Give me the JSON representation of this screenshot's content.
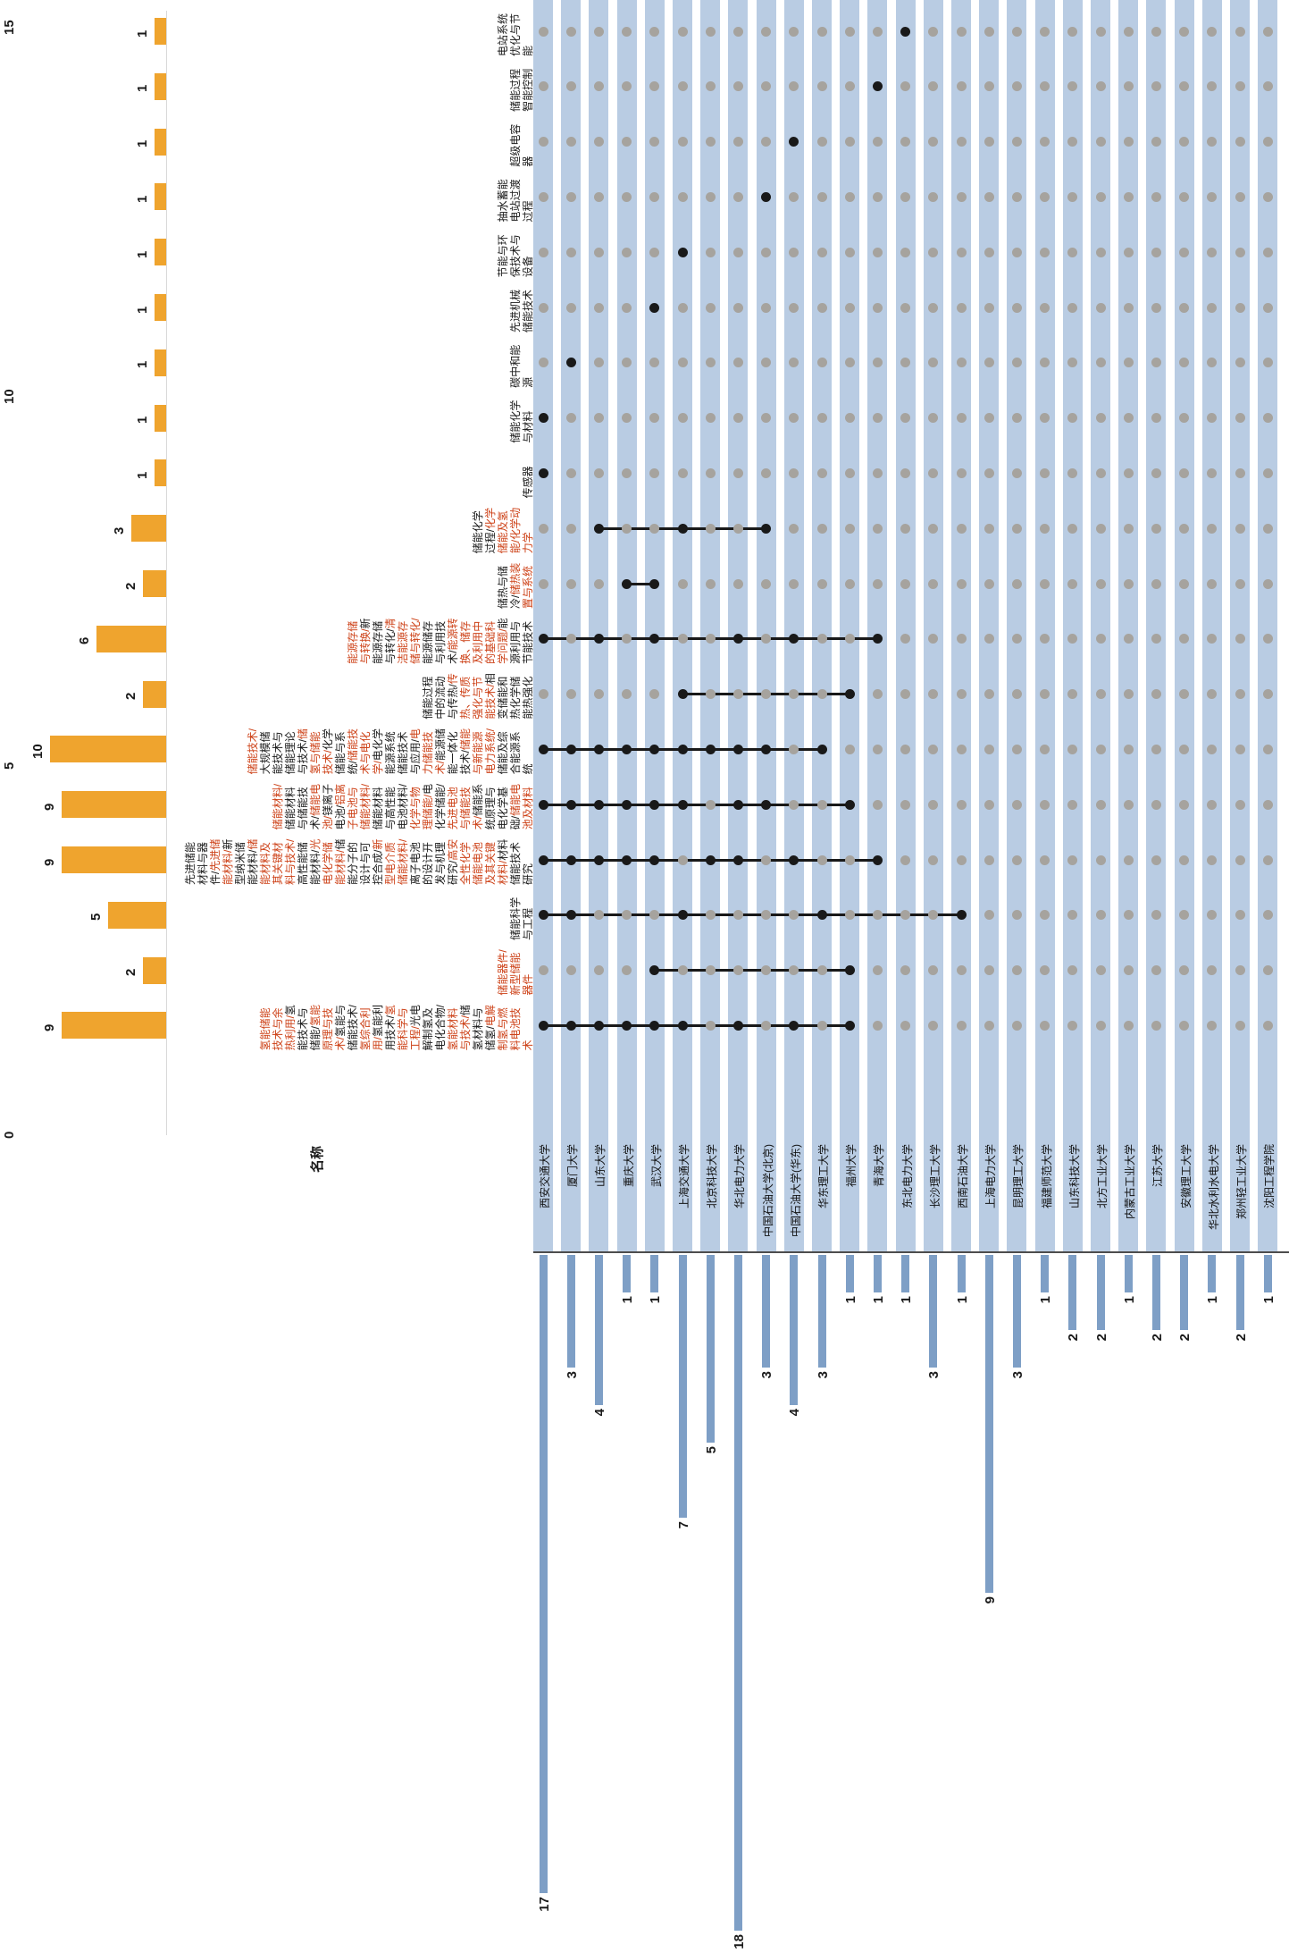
{
  "figure": {
    "label_column_header": "名称",
    "value_axis_ticks": [
      "15",
      "10",
      "5",
      "0"
    ]
  },
  "colors": {
    "bar_orange": "#EFA42E",
    "stripe_blue": "#B9CCE3",
    "set_bar_blue": "#7E9FC6",
    "dot_gray": "#A6A39E",
    "dot_dark": "#191919",
    "connector_dark": "#191919",
    "label_black": "#1A1A1A",
    "label_red": "#CD4117",
    "axis_line": "#4D4D4D"
  },
  "chart_data": {
    "type": "upset",
    "orientation": "figure rotated 90deg CCW (sideways text)",
    "value_axis_ticks": [
      15,
      10,
      5,
      0
    ],
    "intersections": [
      {
        "value": 1,
        "members": [
          14
        ],
        "label_segments": [
          {
            "t": "电站系统优化与节能",
            "c": "k"
          }
        ]
      },
      {
        "value": 1,
        "members": [
          13
        ],
        "label_segments": [
          {
            "t": "储能过程智能控制",
            "c": "k"
          }
        ]
      },
      {
        "value": 1,
        "members": [
          10
        ],
        "label_segments": [
          {
            "t": "超级电容器",
            "c": "k"
          }
        ]
      },
      {
        "value": 1,
        "members": [
          9
        ],
        "label_segments": [
          {
            "t": "抽水蓄能电站过渡过程",
            "c": "k"
          }
        ]
      },
      {
        "value": 1,
        "members": [
          6
        ],
        "label_segments": [
          {
            "t": "节能与环保技术与设备",
            "c": "k"
          }
        ]
      },
      {
        "value": 1,
        "members": [
          5
        ],
        "label_segments": [
          {
            "t": "先进机械储能技术",
            "c": "k"
          }
        ]
      },
      {
        "value": 1,
        "members": [
          2
        ],
        "label_segments": [
          {
            "t": "碳中和能源",
            "c": "k"
          }
        ]
      },
      {
        "value": 1,
        "members": [
          1
        ],
        "label_segments": [
          {
            "t": "储能化学与材料",
            "c": "k"
          }
        ]
      },
      {
        "value": 1,
        "members": [
          1
        ],
        "label_segments": [
          {
            "t": "传感器",
            "c": "k"
          }
        ]
      },
      {
        "value": 3,
        "members": [
          3,
          6,
          9
        ],
        "label_segments": [
          {
            "t": "储能化学过程/",
            "c": "k"
          },
          {
            "t": "化学储能及氢能/",
            "c": "r"
          },
          {
            "t": "化学动力学",
            "c": "r"
          }
        ]
      },
      {
        "value": 2,
        "members": [
          4,
          5
        ],
        "label_segments": [
          {
            "t": "储热与储冷/",
            "c": "k"
          },
          {
            "t": "储热装置与系统",
            "c": "r"
          }
        ]
      },
      {
        "value": 6,
        "members": [
          1,
          3,
          5,
          8,
          10,
          13
        ],
        "label_segments": [
          {
            "t": "能源存储与转换/",
            "c": "r"
          },
          {
            "t": "新能源存储与转化/",
            "c": "k"
          },
          {
            "t": "清洁能源存储与转化/",
            "c": "r"
          },
          {
            "t": "能源储存与利用技术/",
            "c": "k"
          },
          {
            "t": "能源转换、储存及利用中的基础科学问题/",
            "c": "r"
          },
          {
            "t": "能源利用与节能技术",
            "c": "k"
          }
        ]
      },
      {
        "value": 2,
        "members": [
          6,
          12
        ],
        "label_segments": [
          {
            "t": "储能过程中的流动与传热/",
            "c": "k"
          },
          {
            "t": "传热、传质强化与节能技术/",
            "c": "r"
          },
          {
            "t": "相变储能和热化学储能热强化",
            "c": "k"
          }
        ]
      },
      {
        "value": 10,
        "members": [
          1,
          2,
          3,
          4,
          5,
          6,
          7,
          8,
          9,
          11
        ],
        "label_segments": [
          {
            "t": "储能技术/",
            "c": "r"
          },
          {
            "t": "大规模储能技术与储能理论与技术/",
            "c": "k"
          },
          {
            "t": "储氢与储能技术/",
            "c": "r"
          },
          {
            "t": "化学储能与系统/",
            "c": "k"
          },
          {
            "t": "储能技术与电化学/",
            "c": "r"
          },
          {
            "t": "电化学能源系统储能技术与应用/",
            "c": "k"
          },
          {
            "t": "电力储能技术/",
            "c": "r"
          },
          {
            "t": "能源储能一体化技术/",
            "c": "k"
          },
          {
            "t": "储能与新能源电力系统/",
            "c": "r"
          },
          {
            "t": "储能及综合能源系统",
            "c": "k"
          }
        ]
      },
      {
        "value": 9,
        "members": [
          1,
          2,
          3,
          4,
          5,
          6,
          8,
          9,
          12
        ],
        "label_segments": [
          {
            "t": "储能材料/",
            "c": "r"
          },
          {
            "t": "储能材料与储能技术/",
            "c": "k"
          },
          {
            "t": "储能电池/",
            "c": "r"
          },
          {
            "t": "镁离子电池/",
            "c": "k"
          },
          {
            "t": "铝离子电池与储能材料/",
            "c": "r"
          },
          {
            "t": "储能材料与高性能电池材料/",
            "c": "k"
          },
          {
            "t": "化学与物理储能/",
            "c": "r"
          },
          {
            "t": "电化学储能/",
            "c": "k"
          },
          {
            "t": "先进电池与储能技术/",
            "c": "r"
          },
          {
            "t": "储能系统原理与电化学基础/",
            "c": "k"
          },
          {
            "t": "储能电池及材料",
            "c": "r"
          }
        ]
      },
      {
        "value": 9,
        "members": [
          1,
          2,
          3,
          4,
          5,
          7,
          8,
          10,
          13
        ],
        "label_segments": [
          {
            "t": "先进储能材料与器件/",
            "c": "k"
          },
          {
            "t": "先进储能材料/",
            "c": "r"
          },
          {
            "t": "新型纳米储能材料/",
            "c": "k"
          },
          {
            "t": "储能材料及其关键材料与技术/",
            "c": "r"
          },
          {
            "t": "高性能储能材料/",
            "c": "k"
          },
          {
            "t": "光电化学储能材料/",
            "c": "r"
          },
          {
            "t": "储能分子的设计与可控合成/",
            "c": "k"
          },
          {
            "t": "新型电介质储能材料/",
            "c": "r"
          },
          {
            "t": "离子电池的设计开发与机理研究/",
            "c": "k"
          },
          {
            "t": "高安全性化学储能电池及其关键材料/",
            "c": "r"
          },
          {
            "t": "材料储能技术研究",
            "c": "k"
          }
        ]
      },
      {
        "value": 5,
        "members": [
          1,
          2,
          6,
          11,
          16
        ],
        "label_segments": [
          {
            "t": "储能科学与工程",
            "c": "k"
          }
        ]
      },
      {
        "value": 2,
        "members": [
          5,
          12
        ],
        "label_segments": [
          {
            "t": "储能器件/",
            "c": "r"
          },
          {
            "t": "新型储能器件",
            "c": "r"
          }
        ]
      },
      {
        "value": 9,
        "members": [
          1,
          2,
          3,
          4,
          5,
          6,
          8,
          10,
          12
        ],
        "label_segments": [
          {
            "t": "氢能储能技术与余热利用/",
            "c": "r"
          },
          {
            "t": "氢能技术与储能/",
            "c": "k"
          },
          {
            "t": "氢能原理与技术/",
            "c": "r"
          },
          {
            "t": "氢能与储能技术/",
            "c": "k"
          },
          {
            "t": "氢综合利用/",
            "c": "r"
          },
          {
            "t": "氢能利用技术/",
            "c": "k"
          },
          {
            "t": "氢能科学与工程/",
            "c": "r"
          },
          {
            "t": "光电解制氢及电化合物/",
            "c": "k"
          },
          {
            "t": "氢能材料与技术/",
            "c": "r"
          },
          {
            "t": "储氢材料与储氢/",
            "c": "k"
          },
          {
            "t": "电解制氢与燃料电池技术",
            "c": "r"
          }
        ]
      }
    ],
    "universities": [
      {
        "name": "西安交通大学",
        "size": 17
      },
      {
        "name": "厦门大学",
        "size": 3
      },
      {
        "name": "山东大学",
        "size": 4
      },
      {
        "name": "重庆大学",
        "size": 1
      },
      {
        "name": "武汉大学",
        "size": 1
      },
      {
        "name": "上海交通大学",
        "size": 7
      },
      {
        "name": "北京科技大学",
        "size": 5
      },
      {
        "name": "华北电力大学",
        "size": 18
      },
      {
        "name": "中国石油大学(北京)",
        "size": 3
      },
      {
        "name": "中国石油大学(华东)",
        "size": 4
      },
      {
        "name": "华东理工大学",
        "size": 3
      },
      {
        "name": "福州大学",
        "size": 1
      },
      {
        "name": "青海大学",
        "size": 1
      },
      {
        "name": "东北电力大学",
        "size": 1
      },
      {
        "name": "长沙理工大学",
        "size": 3
      },
      {
        "name": "西南石油大学",
        "size": 1
      },
      {
        "name": "上海电力大学",
        "size": 9
      },
      {
        "name": "昆明理工大学",
        "size": 3
      },
      {
        "name": "福建师范大学",
        "size": 1
      },
      {
        "name": "山东科技大学",
        "size": 2
      },
      {
        "name": "北方工业大学",
        "size": 2
      },
      {
        "name": "内蒙古工业大学",
        "size": 1
      },
      {
        "name": "江苏大学",
        "size": 2
      },
      {
        "name": "安徽理工大学",
        "size": 2
      },
      {
        "name": "华北水利水电大学",
        "size": 1
      },
      {
        "name": "郑州轻工业大学",
        "size": 2
      },
      {
        "name": "沈阳工程学院",
        "size": 1
      }
    ]
  }
}
